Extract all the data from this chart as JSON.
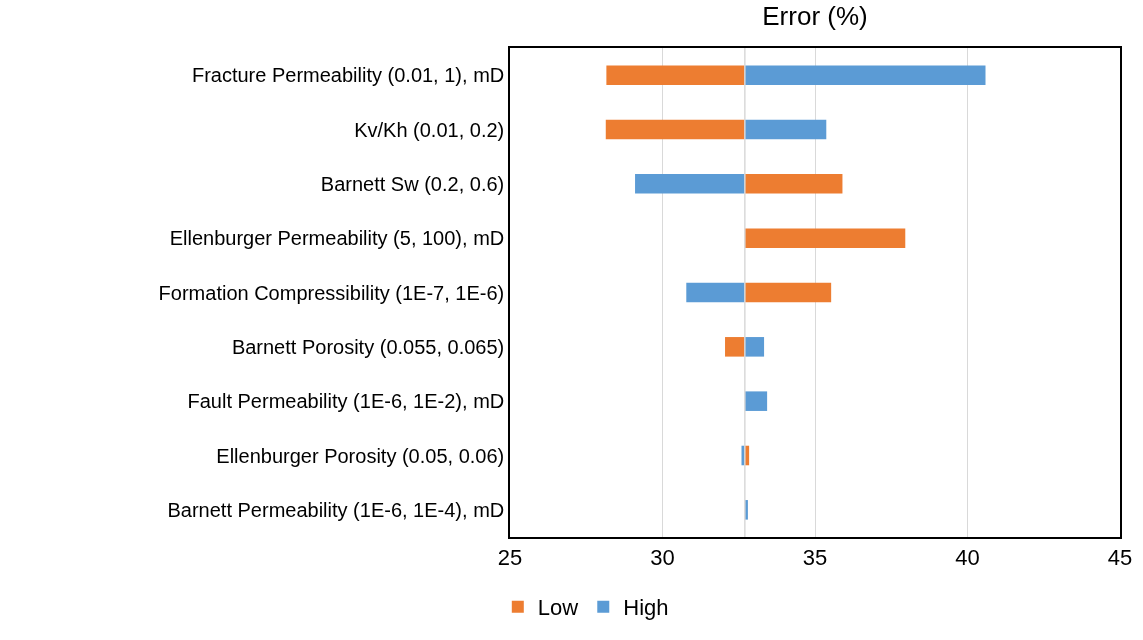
{
  "chart_data": {
    "type": "bar",
    "orientation": "horizontal",
    "title": "Error (%)",
    "categories": [
      "Fracture Permeability (0.01, 1), mD",
      "Kv/Kh (0.01, 0.2)",
      "Barnett Sw (0.2, 0.6)",
      "Ellenburger Permeability (5, 100), mD",
      "Formation Compressibility (1E-7, 1E-6)",
      "Barnett Porosity (0.055, 0.065)",
      "Fault Permeability (1E-6, 1E-2), mD",
      "Ellenburger Porosity (0.05, 0.06)",
      "Barnett Permeability (1E-6, 1E-4), mD"
    ],
    "series": [
      {
        "name": "Low",
        "color": "#ed7d31",
        "base": [
          32.7,
          32.7,
          32.7,
          32.7,
          32.7,
          32.7,
          null,
          32.7,
          null
        ],
        "values": [
          -4.54,
          -4.56,
          3.2,
          5.26,
          2.83,
          -0.65,
          null,
          0.14,
          null
        ]
      },
      {
        "name": "High",
        "color": "#5b9bd5",
        "base": [
          32.7,
          32.7,
          32.7,
          null,
          32.7,
          32.7,
          32.7,
          32.7,
          32.7
        ],
        "values": [
          7.89,
          2.67,
          -3.6,
          null,
          -1.92,
          0.63,
          0.73,
          -0.11,
          0.1
        ]
      }
    ],
    "xlim": [
      25,
      45
    ],
    "xticks": [
      25,
      30,
      35,
      40,
      45
    ],
    "grid": "x",
    "legend": "bottom left",
    "ref_lines": [
      {
        "axis": "x",
        "value": 32.7,
        "color": "#d9d9d9"
      }
    ]
  }
}
